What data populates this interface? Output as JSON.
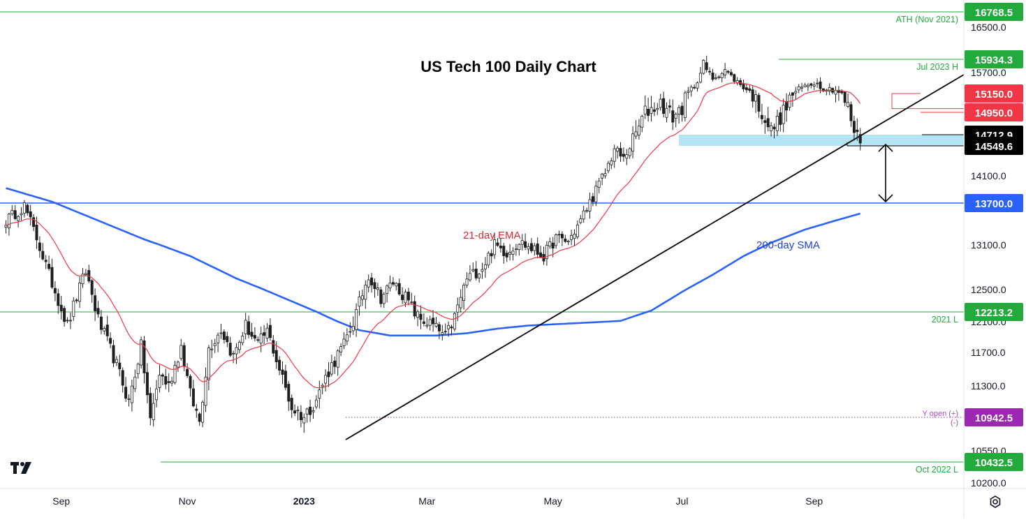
{
  "chart_data": {
    "type": "candlestick",
    "title": "US Tech 100 Daily Chart",
    "ylim": [
      10200,
      16768.5
    ],
    "y_ticks": [
      "16500.0",
      "15700.0",
      "14100.0",
      "13100.0",
      "12500.0",
      "12100.0",
      "11700.0",
      "11300.0",
      "10550.0",
      "10200.0"
    ],
    "y_tick_values": [
      16500,
      15700,
      14100,
      13100,
      12500,
      12100,
      11700,
      11300,
      10550,
      10200
    ],
    "x_ticks": [
      {
        "label": "Sep",
        "index": 18
      },
      {
        "label": "Nov",
        "index": 59
      },
      {
        "label": "2023",
        "index": 97
      },
      {
        "label": "Mar",
        "index": 137
      },
      {
        "label": "May",
        "index": 178
      },
      {
        "label": "Jul",
        "index": 220
      },
      {
        "label": "Sep",
        "index": 263
      }
    ],
    "bar_count": 295,
    "candles_anchor_close": [
      [
        0,
        13450
      ],
      [
        6,
        13660
      ],
      [
        10,
        13200
      ],
      [
        14,
        12700
      ],
      [
        20,
        12050
      ],
      [
        26,
        12750
      ],
      [
        30,
        12120
      ],
      [
        35,
        11650
      ],
      [
        40,
        11120
      ],
      [
        44,
        11780
      ],
      [
        47,
        10900
      ],
      [
        50,
        11450
      ],
      [
        53,
        11300
      ],
      [
        57,
        11780
      ],
      [
        60,
        11200
      ],
      [
        63,
        10900
      ],
      [
        66,
        11750
      ],
      [
        70,
        12000
      ],
      [
        74,
        11650
      ],
      [
        78,
        12050
      ],
      [
        82,
        11800
      ],
      [
        85,
        11980
      ],
      [
        89,
        11500
      ],
      [
        93,
        11050
      ],
      [
        97,
        10950
      ],
      [
        101,
        11150
      ],
      [
        105,
        11480
      ],
      [
        110,
        11800
      ],
      [
        114,
        12200
      ],
      [
        118,
        12700
      ],
      [
        122,
        12400
      ],
      [
        126,
        12600
      ],
      [
        130,
        12400
      ],
      [
        134,
        12150
      ],
      [
        139,
        12050
      ],
      [
        143,
        11900
      ],
      [
        146,
        12150
      ],
      [
        150,
        12650
      ],
      [
        155,
        12800
      ],
      [
        159,
        13100
      ],
      [
        163,
        13000
      ],
      [
        167,
        13150
      ],
      [
        171,
        13050
      ],
      [
        175,
        12950
      ],
      [
        179,
        13200
      ],
      [
        183,
        13150
      ],
      [
        187,
        13450
      ],
      [
        191,
        13800
      ],
      [
        195,
        14150
      ],
      [
        198,
        14500
      ],
      [
        201,
        14350
      ],
      [
        204,
        14650
      ],
      [
        208,
        14950
      ],
      [
        213,
        15050
      ],
      [
        217,
        14900
      ],
      [
        220,
        15000
      ],
      [
        224,
        15350
      ],
      [
        227,
        15850
      ],
      [
        230,
        15550
      ],
      [
        234,
        15750
      ],
      [
        238,
        15450
      ],
      [
        242,
        15200
      ],
      [
        246,
        14950
      ],
      [
        249,
        14750
      ],
      [
        253,
        14950
      ],
      [
        256,
        15150
      ],
      [
        260,
        15350
      ],
      [
        263,
        15450
      ],
      [
        266,
        15300
      ],
      [
        270,
        15250
      ],
      [
        274,
        15000
      ],
      [
        276,
        14750
      ],
      [
        278,
        14630
      ]
    ],
    "ema21_label": "21-day EMA",
    "sma200_label": "200-day SMA",
    "sma200_anchors": [
      [
        0,
        13920
      ],
      [
        15,
        13720
      ],
      [
        30,
        13450
      ],
      [
        45,
        13180
      ],
      [
        60,
        12950
      ],
      [
        75,
        12650
      ],
      [
        90,
        12400
      ],
      [
        105,
        12150
      ],
      [
        115,
        11990
      ],
      [
        125,
        11920
      ],
      [
        140,
        11920
      ],
      [
        150,
        11950
      ],
      [
        160,
        12010
      ],
      [
        170,
        12050
      ],
      [
        180,
        12070
      ],
      [
        190,
        12090
      ],
      [
        200,
        12110
      ],
      [
        210,
        12230
      ],
      [
        220,
        12470
      ],
      [
        230,
        12700
      ],
      [
        240,
        12950
      ],
      [
        250,
        13150
      ],
      [
        260,
        13320
      ],
      [
        270,
        13450
      ],
      [
        278,
        13550
      ]
    ],
    "levels": [
      {
        "value": "16768.5",
        "price": 16768.5,
        "note": "ATH (Nov 2021)",
        "color": "#22ab3c",
        "style": "solid"
      },
      {
        "value": "15934.3",
        "price": 15934.3,
        "note": "Jul 2023 H",
        "color": "#22ab3c",
        "style": "solid"
      },
      {
        "value": "15150.0",
        "price": 15150.0,
        "note": "",
        "color": "#f23645",
        "style": "solid"
      },
      {
        "value": "14950.0",
        "price": 14950.0,
        "note": "",
        "color": "#f23645",
        "style": "solid"
      },
      {
        "value": "14712.9",
        "price": 14712.9,
        "note": "",
        "color": "#000000",
        "style": "solid"
      },
      {
        "value": "14549.6",
        "price": 14549.6,
        "note": "",
        "color": "#000000",
        "style": "solid"
      },
      {
        "value": "13700.0",
        "price": 13700.0,
        "note": "",
        "color": "#2962ff",
        "style": "solid"
      },
      {
        "value": "12213.2",
        "price": 12213.2,
        "note": "2021 L",
        "color": "#22ab3c",
        "style": "solid"
      },
      {
        "value": "10942.5",
        "price": 10942.5,
        "note": "Y open (+)",
        "note2": "(-)",
        "color": "#9c27b0",
        "style": "dotted"
      },
      {
        "value": "10432.5",
        "price": 10432.5,
        "note": "Oct 2022 L",
        "color": "#22ab3c",
        "style": "solid"
      }
    ],
    "support_zone": [
      14549.6,
      14712.9
    ],
    "trendline": {
      "from": [
        97,
        10650
      ],
      "to": [
        295,
        15780
      ]
    },
    "projection_arrow": {
      "index": 274,
      "from": 14549.6,
      "to": 13700
    }
  },
  "colors": {
    "up": "#089981",
    "down": "#1f1f1f",
    "ema": "#f23645",
    "sma": "#2962ff",
    "zone": "#b2e4f3",
    "axis": "#131722",
    "grid": "#e0e3eb"
  },
  "icons": {
    "logo": "tradingview-logo",
    "settings": "gear-icon"
  }
}
